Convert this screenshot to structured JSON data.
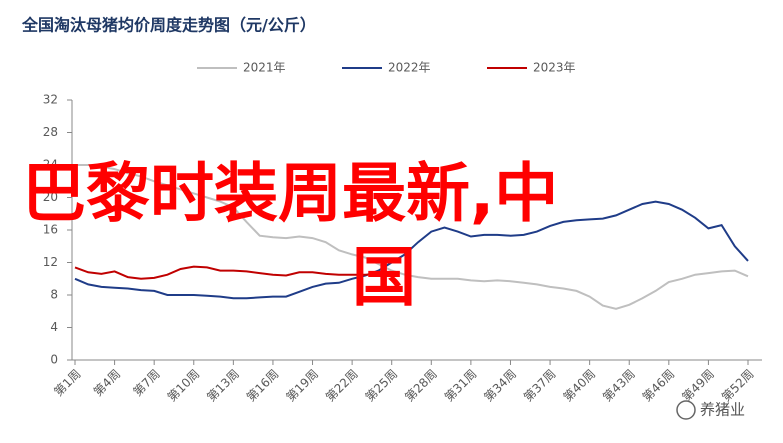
{
  "chart_data": {
    "type": "line",
    "title": "全国淘汰母猪均价周度走势图（元/公斤）",
    "categories": [
      "第1周",
      null,
      null,
      "第4周",
      null,
      null,
      "第7周",
      null,
      null,
      "第10周",
      null,
      null,
      "第13周",
      null,
      null,
      "第16周",
      null,
      null,
      "第19周",
      null,
      null,
      "第22周",
      null,
      null,
      "第25周",
      null,
      null,
      "第28周",
      null,
      null,
      "第31周",
      null,
      null,
      "第34周",
      null,
      null,
      "第37周",
      null,
      null,
      "第40周",
      null,
      null,
      "第43周",
      null,
      null,
      "第46周",
      null,
      null,
      "第49周",
      null,
      null,
      "第52周"
    ],
    "series": [
      {
        "name": "2021年",
        "color": "#bfbfbf",
        "values": [
          24,
          24,
          23.8,
          23.5,
          23,
          22.6,
          22,
          21.5,
          21,
          20.5,
          20,
          19.5,
          18.8,
          17,
          15.3,
          15.1,
          15,
          15.2,
          15,
          14.5,
          13.5,
          13,
          12.6,
          11.8,
          11,
          10.5,
          10.2,
          10,
          10,
          10,
          9.8,
          9.7,
          9.8,
          9.7,
          9.5,
          9.3,
          9,
          8.8,
          8.5,
          7.8,
          6.7,
          6.3,
          6.8,
          7.6,
          8.5,
          9.6,
          10,
          10.5,
          10.7,
          10.9,
          11,
          10.3
        ]
      },
      {
        "name": "2022年",
        "color": "#1f3c88",
        "values": [
          10,
          9.3,
          9,
          8.9,
          8.8,
          8.6,
          8.5,
          8,
          8,
          8,
          7.9,
          7.8,
          7.6,
          7.6,
          7.7,
          7.8,
          7.8,
          8.4,
          9,
          9.4,
          9.5,
          10,
          10.4,
          11,
          12,
          13,
          14.5,
          15.8,
          16.3,
          15.8,
          15.2,
          15.4,
          15.4,
          15.3,
          15.4,
          15.8,
          16.5,
          17,
          17.2,
          17.3,
          17.4,
          17.8,
          18.5,
          19.2,
          19.5,
          19.2,
          18.5,
          17.5,
          16.2,
          16.6,
          14,
          12.2
        ]
      },
      {
        "name": "2023年",
        "color": "#c00000",
        "values": [
          11.4,
          10.8,
          10.6,
          10.9,
          10.2,
          10,
          10.1,
          10.5,
          11.2,
          11.5,
          11.4,
          11,
          11,
          10.9,
          10.7,
          10.5,
          10.4,
          10.8,
          10.8,
          10.6,
          10.5,
          10.5,
          10.5,
          10.6,
          null,
          null,
          null,
          null,
          null,
          null,
          null,
          null,
          null,
          null,
          null,
          null,
          null,
          null,
          null,
          null,
          null,
          null,
          null,
          null,
          null,
          null,
          null,
          null,
          null,
          null,
          null,
          null
        ]
      }
    ],
    "ylim": [
      0,
      32
    ],
    "yticks": [
      0,
      4,
      8,
      12,
      16,
      20,
      24,
      28,
      32
    ],
    "overlay": [
      "巴黎时装周最新,中",
      "国"
    ],
    "watermark": "养猪业"
  }
}
